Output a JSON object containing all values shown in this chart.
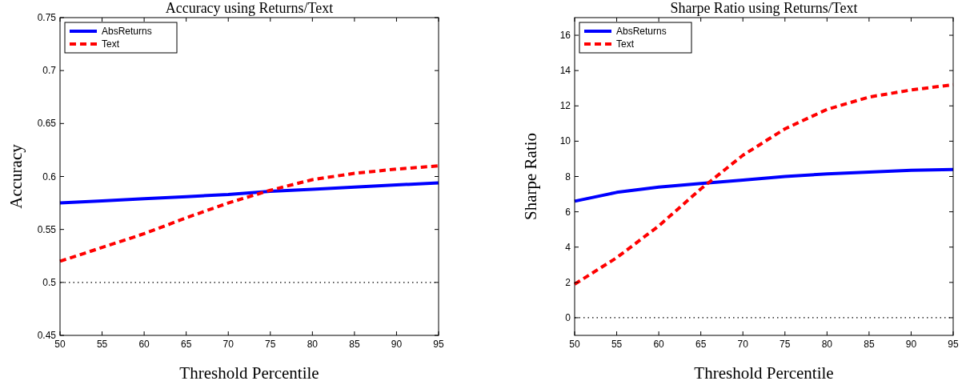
{
  "chart_data": [
    {
      "type": "line",
      "title": "Accuracy using Returns/Text",
      "xlabel": "Threshold Percentile",
      "ylabel": "Accuracy",
      "x": [
        50,
        55,
        60,
        65,
        70,
        75,
        80,
        85,
        90,
        95
      ],
      "xlim": [
        50,
        95
      ],
      "xticks": [
        50,
        55,
        60,
        65,
        70,
        75,
        80,
        85,
        90,
        95
      ],
      "ylim": [
        0.45,
        0.75
      ],
      "yticks": [
        0.45,
        0.5,
        0.55,
        0.6,
        0.65,
        0.7,
        0.75
      ],
      "legend": "top left",
      "grid": false,
      "ref_lines": [
        {
          "axis": "y",
          "value": 0.5,
          "color": "#000000",
          "line_style": "dotted"
        }
      ],
      "series": [
        {
          "name": "AbsReturns",
          "color": "#0000ff",
          "line_style": "solid",
          "values": [
            0.575,
            0.577,
            0.579,
            0.581,
            0.583,
            0.586,
            0.588,
            0.59,
            0.592,
            0.594
          ]
        },
        {
          "name": "Text",
          "color": "#ff0000",
          "line_style": "dashed",
          "values": [
            0.52,
            0.533,
            0.546,
            0.561,
            0.575,
            0.587,
            0.597,
            0.603,
            0.607,
            0.61
          ]
        }
      ]
    },
    {
      "type": "line",
      "title": "Sharpe Ratio using Returns/Text",
      "xlabel": "Threshold Percentile",
      "ylabel": "Sharpe Ratio",
      "x": [
        50,
        55,
        60,
        65,
        70,
        75,
        80,
        85,
        90,
        95
      ],
      "xlim": [
        50,
        95
      ],
      "xticks": [
        50,
        55,
        60,
        65,
        70,
        75,
        80,
        85,
        90,
        95
      ],
      "ylim": [
        -1,
        17
      ],
      "yticks": [
        0,
        2,
        4,
        6,
        8,
        10,
        12,
        14,
        16
      ],
      "legend": "top left",
      "grid": false,
      "ref_lines": [
        {
          "axis": "y",
          "value": 0,
          "color": "#000000",
          "line_style": "dotted"
        }
      ],
      "series": [
        {
          "name": "AbsReturns",
          "color": "#0000ff",
          "line_style": "solid",
          "values": [
            6.6,
            7.1,
            7.4,
            7.6,
            7.8,
            8.0,
            8.15,
            8.25,
            8.35,
            8.4
          ]
        },
        {
          "name": "Text",
          "color": "#ff0000",
          "line_style": "dashed",
          "values": [
            1.9,
            3.4,
            5.2,
            7.3,
            9.2,
            10.7,
            11.8,
            12.5,
            12.9,
            13.2
          ]
        }
      ]
    }
  ]
}
